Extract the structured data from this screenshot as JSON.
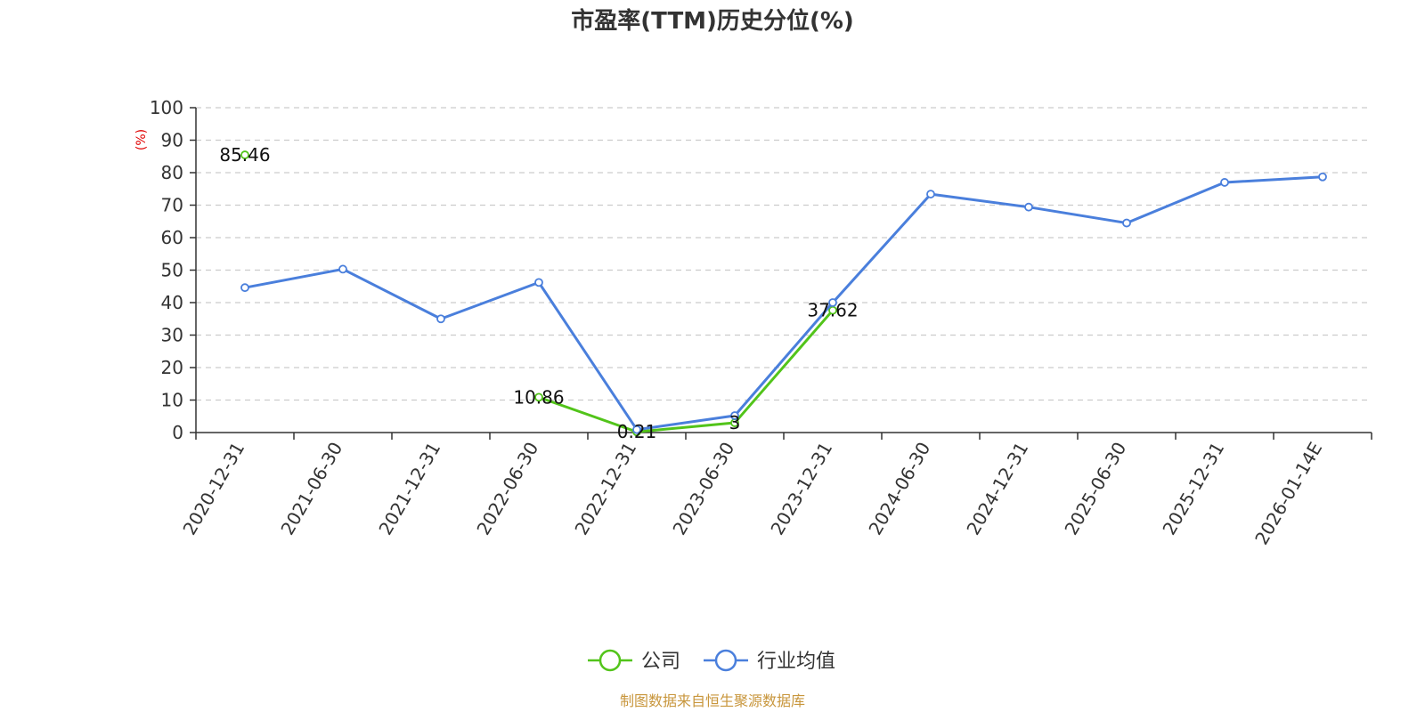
{
  "chart_data": {
    "type": "line",
    "title": "市盈率(TTM)历史分位(%)",
    "unit_label": "(%)",
    "categories": [
      "2020-12-31",
      "2021-06-30",
      "2021-12-31",
      "2022-06-30",
      "2022-12-31",
      "2023-06-30",
      "2023-12-31",
      "2024-06-30",
      "2024-12-31",
      "2025-06-30",
      "2025-12-31",
      "2026-01-14E"
    ],
    "y_ticks": [
      "0",
      "10",
      "20",
      "30",
      "40",
      "50",
      "60",
      "70",
      "80",
      "90",
      "100"
    ],
    "ylim": [
      0,
      100
    ],
    "grid": true,
    "legend_position": "bottom",
    "series": [
      {
        "name": "公司",
        "color": "#52c41a",
        "values": [
          85.46,
          null,
          null,
          10.86,
          0.21,
          3,
          37.62,
          null,
          null,
          null,
          null,
          null
        ],
        "labels": [
          "85.46",
          "",
          "",
          "10.86",
          "0.21",
          "3",
          "37.62",
          "",
          "",
          "",
          "",
          ""
        ]
      },
      {
        "name": "行业均值",
        "color": "#4a7fdc",
        "values": [
          44.6,
          50.3,
          35.0,
          46.2,
          0.9,
          5.2,
          40.0,
          73.4,
          69.4,
          64.5,
          77.0,
          78.7
        ]
      }
    ],
    "source": "制图数据来自恒生聚源数据库"
  }
}
